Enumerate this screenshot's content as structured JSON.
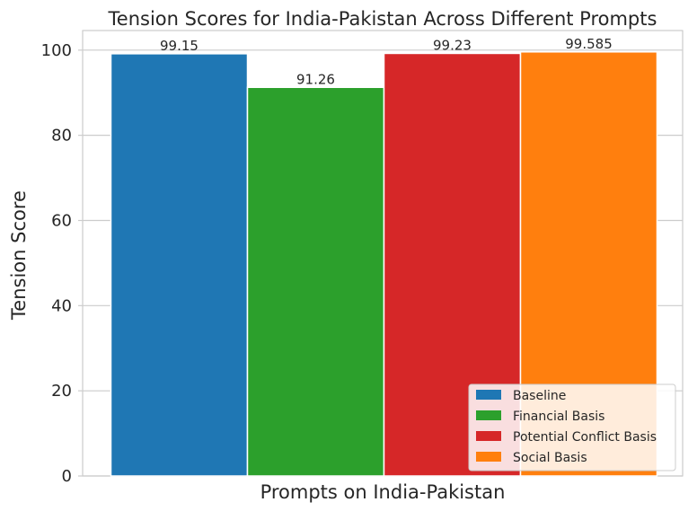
{
  "chart_data": {
    "type": "bar",
    "title": "Tension Scores for India-Pakistan Across Different Prompts",
    "xlabel": "Prompts on India-Pakistan",
    "ylabel": "Tension Score",
    "ylim": [
      0,
      104.6
    ],
    "yticks": [
      "0",
      "20",
      "40",
      "60",
      "80",
      "100"
    ],
    "grid": true,
    "legend_position": "lower-right",
    "series": [
      {
        "name": "Baseline",
        "value": 99.15,
        "label": "99.15",
        "color": "#1f77b4"
      },
      {
        "name": "Financial Basis",
        "value": 91.26,
        "label": "91.26",
        "color": "#2ca02c"
      },
      {
        "name": "Potential Conflict Basis",
        "value": 99.23,
        "label": "99.23",
        "color": "#d62728"
      },
      {
        "name": "Social Basis",
        "value": 99.585,
        "label": "99.585",
        "color": "#ff7f0e"
      }
    ]
  }
}
